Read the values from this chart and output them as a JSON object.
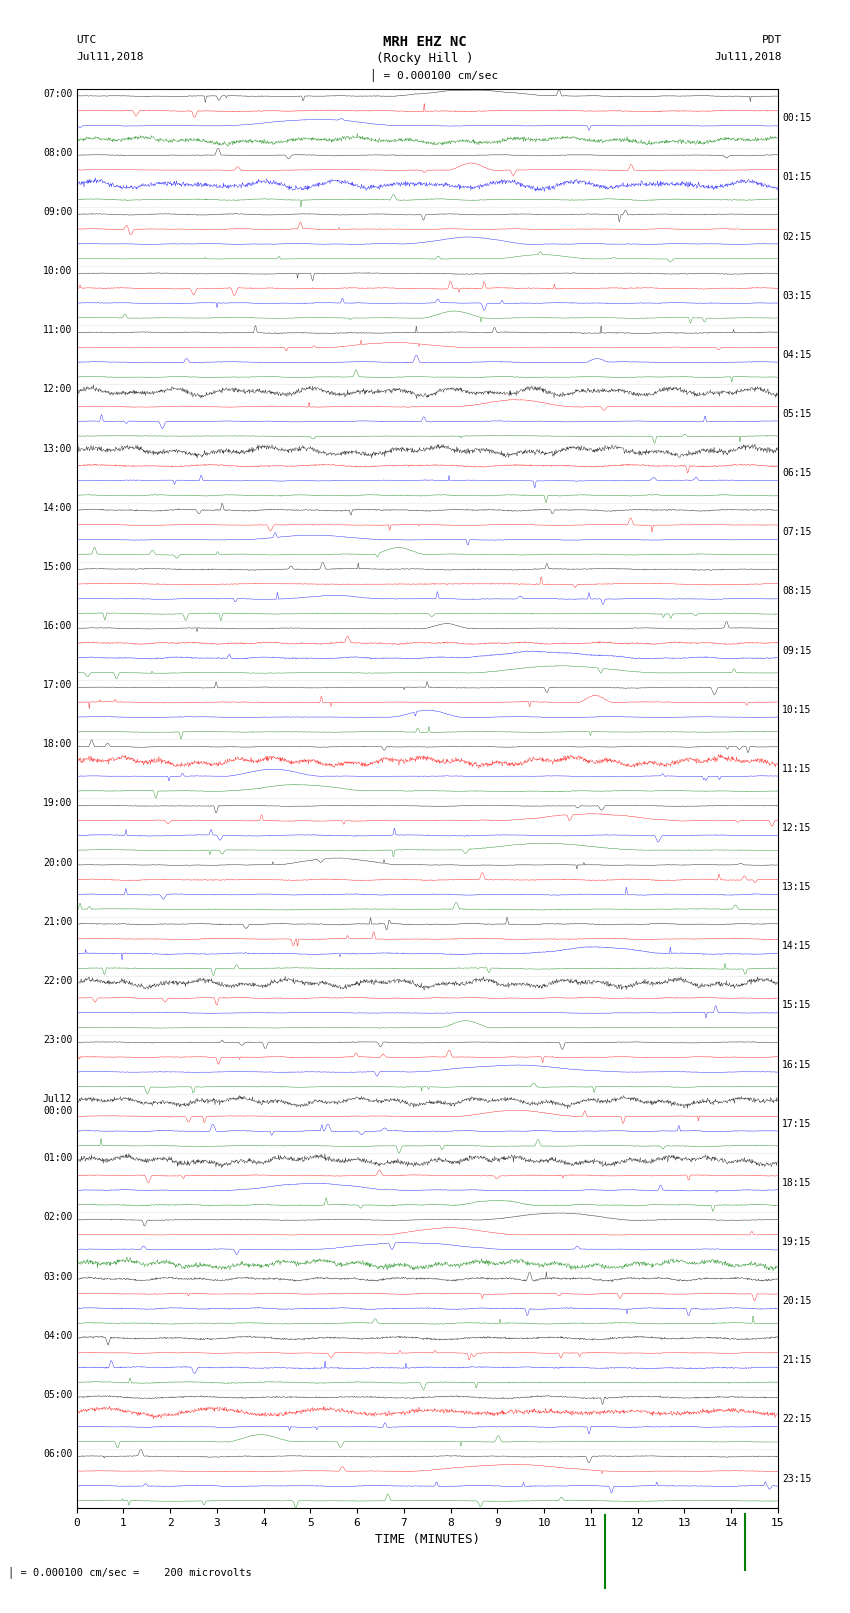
{
  "title_line1": "MRH EHZ NC",
  "title_line2": "(Rocky Hill )",
  "scale_label": "= 0.000100 cm/sec",
  "left_header": "UTC",
  "left_date": "Jul11,2018",
  "right_header": "PDT",
  "right_date": "Jul11,2018",
  "bottom_label": "TIME (MINUTES)",
  "bottom_note": "= 0.000100 cm/sec =    200 microvolts",
  "xlabel_ticks": [
    0,
    1,
    2,
    3,
    4,
    5,
    6,
    7,
    8,
    9,
    10,
    11,
    12,
    13,
    14,
    15
  ],
  "left_times": [
    "07:00",
    "08:00",
    "09:00",
    "10:00",
    "11:00",
    "12:00",
    "13:00",
    "14:00",
    "15:00",
    "16:00",
    "17:00",
    "18:00",
    "19:00",
    "20:00",
    "21:00",
    "22:00",
    "23:00",
    "Jul12\n00:00",
    "01:00",
    "02:00",
    "03:00",
    "04:00",
    "05:00",
    "06:00"
  ],
  "right_times": [
    "00:15",
    "01:15",
    "02:15",
    "03:15",
    "04:15",
    "05:15",
    "06:15",
    "07:15",
    "08:15",
    "09:15",
    "10:15",
    "11:15",
    "12:15",
    "13:15",
    "14:15",
    "15:15",
    "16:15",
    "17:15",
    "18:15",
    "19:15",
    "20:15",
    "21:15",
    "22:15",
    "23:15"
  ],
  "n_rows": 24,
  "colors": [
    "black",
    "red",
    "blue",
    "green"
  ],
  "bg_color": "white",
  "fig_width": 8.5,
  "fig_height": 16.13,
  "dpi": 100,
  "segment_minutes": 15,
  "samples_per_minute": 100
}
